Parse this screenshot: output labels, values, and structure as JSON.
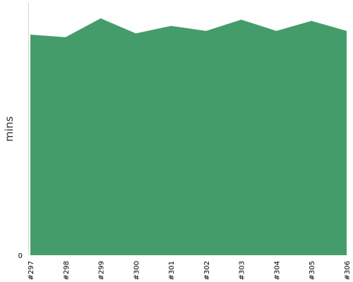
{
  "chart_data": {
    "type": "area",
    "ylabel": "mins",
    "categories": [
      "#297",
      "#298",
      "#299",
      "#300",
      "#301",
      "#302",
      "#303",
      "#304",
      "#305",
      "#306"
    ],
    "series": [
      {
        "values": [
          8.8,
          8.7,
          9.45,
          8.85,
          9.15,
          8.95,
          9.4,
          8.95,
          9.35,
          8.95
        ]
      }
    ],
    "y_ticks": [
      0
    ],
    "y_tick_labels": [
      "0"
    ],
    "ylim": [
      0,
      10.07
    ],
    "fill_color": "#459c6b",
    "grid": false,
    "legend": "none"
  }
}
